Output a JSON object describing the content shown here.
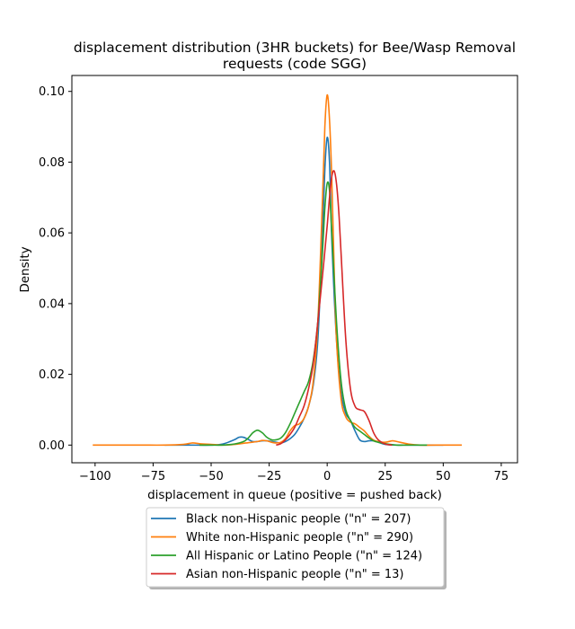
{
  "chart_data": {
    "type": "line",
    "title_line1": "displacement distribution (3HR buckets) for Bee/Wasp Removal",
    "title_line2": "requests (code SGG)",
    "xlabel": "displacement in queue (positive = pushed back)",
    "ylabel": "Density",
    "xlim": [
      -110,
      82
    ],
    "ylim": [
      -0.005,
      0.1045
    ],
    "xticks": [
      -100,
      -75,
      -50,
      -25,
      0,
      25,
      50,
      75
    ],
    "yticks": [
      0.0,
      0.02,
      0.04,
      0.06,
      0.08,
      0.1
    ],
    "ytick_labels": [
      "0.00",
      "0.02",
      "0.04",
      "0.06",
      "0.08",
      "0.10"
    ],
    "legend_position": "below",
    "grid": false,
    "series": [
      {
        "name": "Black non-Hispanic people (\"n\" = 207)",
        "color": "#1f77b4",
        "x": [
          -70,
          -60,
          -50,
          -45,
          -40,
          -38,
          -36,
          -34,
          -32,
          -30,
          -28,
          -26,
          -24,
          -22,
          -20,
          -18,
          -16,
          -14,
          -12,
          -10,
          -8,
          -6,
          -4,
          -2,
          -1,
          0,
          1,
          2,
          4,
          6,
          8,
          10,
          12,
          14,
          16,
          18,
          20,
          22,
          25,
          30,
          40,
          50
        ],
        "y": [
          0.0,
          0.0,
          0.0,
          0.0003,
          0.0015,
          0.0022,
          0.0022,
          0.0016,
          0.001,
          0.001,
          0.0012,
          0.0012,
          0.001,
          0.0008,
          0.0006,
          0.001,
          0.0018,
          0.003,
          0.005,
          0.0075,
          0.011,
          0.017,
          0.03,
          0.06,
          0.078,
          0.087,
          0.08,
          0.058,
          0.03,
          0.015,
          0.009,
          0.007,
          0.004,
          0.0015,
          0.001,
          0.0012,
          0.0012,
          0.0008,
          0.0002,
          0.0,
          0.0,
          0.0
        ]
      },
      {
        "name": "White non-Hispanic people (\"n\" = 290)",
        "color": "#ff7f0e",
        "x": [
          -101,
          -90,
          -80,
          -70,
          -62,
          -58,
          -55,
          -50,
          -45,
          -40,
          -35,
          -30,
          -28,
          -26,
          -24,
          -22,
          -20,
          -18,
          -16,
          -14,
          -12,
          -10,
          -8,
          -6,
          -4,
          -2,
          -1,
          0,
          1,
          2,
          3,
          4,
          6,
          8,
          10,
          12,
          14,
          16,
          18,
          20,
          22,
          25,
          28,
          30,
          35,
          40,
          50,
          58
        ],
        "y": [
          0.0,
          0.0,
          0.0,
          0.0,
          0.0002,
          0.0006,
          0.0004,
          0.0002,
          0.0,
          0.0002,
          0.0006,
          0.001,
          0.0013,
          0.0012,
          0.0008,
          0.0006,
          0.0008,
          0.0018,
          0.004,
          0.0055,
          0.006,
          0.0075,
          0.011,
          0.018,
          0.035,
          0.07,
          0.09,
          0.099,
          0.092,
          0.075,
          0.05,
          0.03,
          0.013,
          0.008,
          0.0065,
          0.006,
          0.005,
          0.004,
          0.0025,
          0.0014,
          0.001,
          0.0008,
          0.0012,
          0.001,
          0.0003,
          0.0,
          0.0,
          0.0
        ]
      },
      {
        "name": "All Hispanic or Latino People (\"n\" = 124)",
        "color": "#2ca02c",
        "x": [
          -55,
          -50,
          -45,
          -40,
          -36,
          -34,
          -32,
          -30,
          -28,
          -26,
          -24,
          -22,
          -20,
          -18,
          -16,
          -14,
          -12,
          -10,
          -8,
          -6,
          -4,
          -2,
          -1,
          0,
          1,
          2,
          4,
          6,
          8,
          10,
          12,
          14,
          16,
          18,
          20,
          22,
          25,
          30,
          35,
          43
        ],
        "y": [
          0.0,
          0.0,
          0.0,
          0.0003,
          0.001,
          0.002,
          0.0035,
          0.0042,
          0.0035,
          0.0022,
          0.0015,
          0.0015,
          0.002,
          0.0035,
          0.006,
          0.009,
          0.012,
          0.015,
          0.018,
          0.024,
          0.035,
          0.055,
          0.067,
          0.074,
          0.072,
          0.06,
          0.035,
          0.018,
          0.01,
          0.007,
          0.005,
          0.004,
          0.003,
          0.002,
          0.0012,
          0.0008,
          0.0004,
          0.0,
          0.0,
          0.0
        ]
      },
      {
        "name": "Asian non-Hispanic people (\"n\" = 13)",
        "color": "#d62728",
        "x": [
          -22,
          -20,
          -18,
          -16,
          -14,
          -12,
          -10,
          -8,
          -6,
          -4,
          -2,
          0,
          1,
          2,
          3,
          4,
          5,
          6,
          8,
          10,
          12,
          14,
          16,
          18,
          20,
          22,
          25,
          28
        ],
        "y": [
          0.0,
          0.0004,
          0.0015,
          0.003,
          0.005,
          0.008,
          0.011,
          0.016,
          0.023,
          0.035,
          0.048,
          0.062,
          0.07,
          0.076,
          0.0775,
          0.074,
          0.066,
          0.054,
          0.03,
          0.016,
          0.011,
          0.01,
          0.0095,
          0.007,
          0.0035,
          0.0015,
          0.0003,
          0.0
        ]
      }
    ]
  }
}
